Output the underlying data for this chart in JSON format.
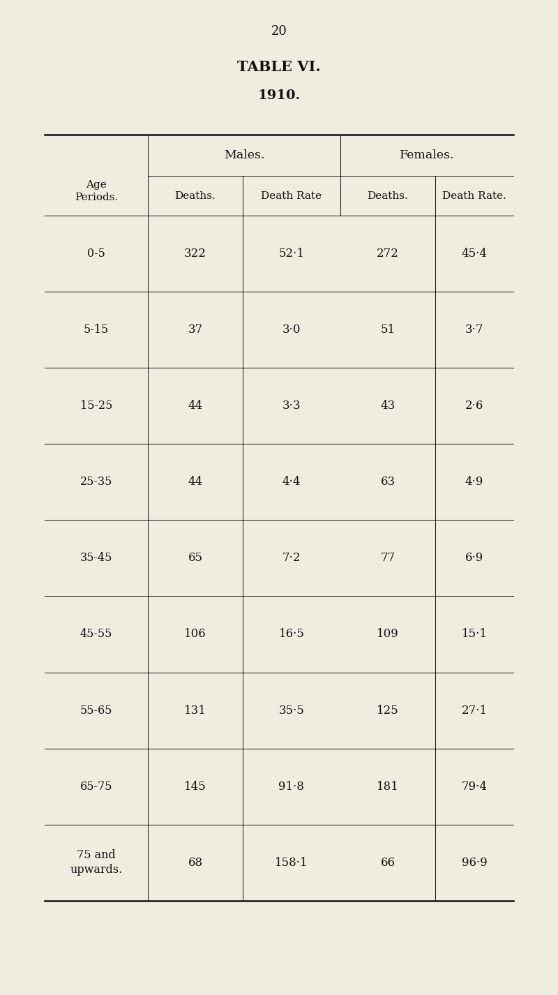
{
  "title": "TABLE VI.",
  "subtitle": "1910.",
  "page_number": "20",
  "background_color": "#f0ece0",
  "col_header_1": "Age\nPeriods.",
  "col_groups": [
    "Males.",
    "Females."
  ],
  "col_subheaders": [
    "Deaths.",
    "Death Rate",
    "Deaths.",
    "Death Rate."
  ],
  "age_periods": [
    "0-5",
    "5-15",
    "15-25",
    "25-35",
    "35-45",
    "45-55",
    "55-65",
    "65-75",
    "75 and\nupwards."
  ],
  "male_deaths": [
    "322",
    "37",
    "44",
    "44",
    "65",
    "106",
    "131",
    "145",
    "68"
  ],
  "male_rates": [
    "52·1",
    "3·0",
    "3·3",
    "4·4",
    "7·2",
    "16·5",
    "35·5",
    "91·8",
    "158·1"
  ],
  "female_deaths": [
    "272",
    "51",
    "43",
    "63",
    "77",
    "109",
    "125",
    "181",
    "66"
  ],
  "female_rates": [
    "45·4",
    "3·7",
    "2·6",
    "4·9",
    "6·9",
    "15·1",
    "27·1",
    "79·4",
    "96·9"
  ]
}
